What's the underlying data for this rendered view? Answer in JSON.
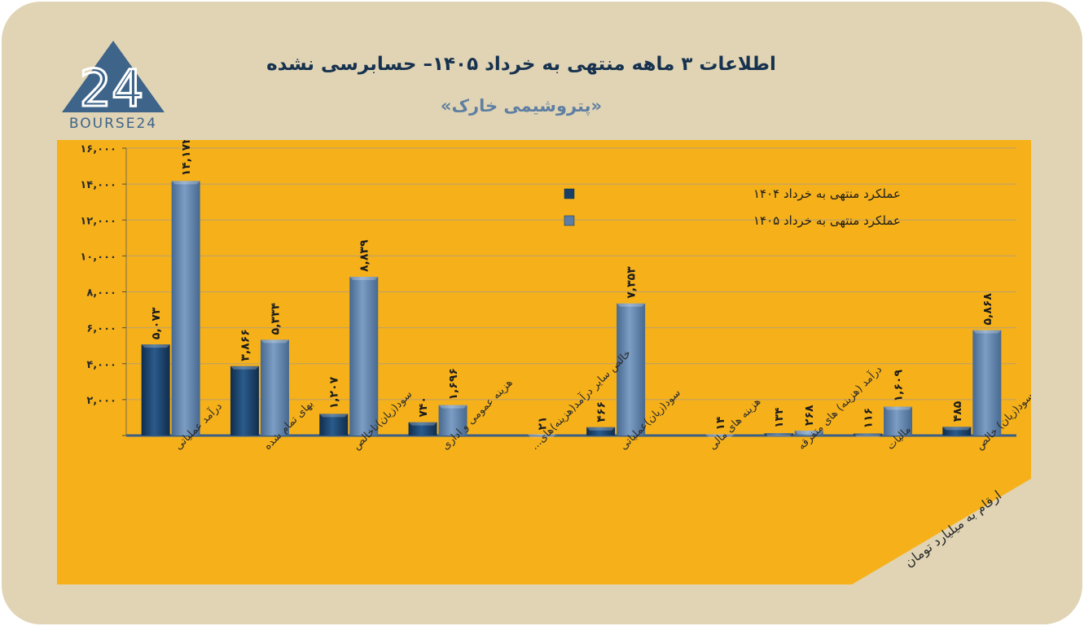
{
  "header": {
    "title": "اطلاعات ۳  ماهه منتهی به خرداد ۱۴۰۵– حسابرسی نشده",
    "subtitle": "«پتروشیمی خارک»",
    "logo_number": "24",
    "logo_text": "BOURSE24"
  },
  "unit_note": "ارقام به میلیارد تومان",
  "colors": {
    "background": "#e0d4b4",
    "panel": "#f6b11a",
    "series_1404": "#173f68",
    "series_1405": "#5b7ea8",
    "logo": "#3e6489"
  },
  "chart_data": {
    "type": "bar",
    "ylim": [
      0,
      16000
    ],
    "yticks": [
      "",
      "۲,۰۰۰",
      "۴,۰۰۰",
      "۶,۰۰۰",
      "۸,۰۰۰",
      "۱۰,۰۰۰",
      "۱۲,۰۰۰",
      "۱۴,۰۰۰",
      "۱۶,۰۰۰"
    ],
    "ytick_values": [
      0,
      2000,
      4000,
      6000,
      8000,
      10000,
      12000,
      14000,
      16000
    ],
    "grid": true,
    "legend_position": "top-right",
    "categories": [
      "درآمد عملیاتی",
      "بهای تمام شده",
      "سود(زیان)ناخالص",
      "هزینه عمومی و اداری",
      "خالص سایر درآمد(هزینه)های...",
      "سود(زیان)عملیاتی",
      "هزینه های مالی",
      "درآمد (هزینه) های متفرقه",
      "مالیات",
      "سود(زیان) خالص"
    ],
    "series": [
      {
        "name": "عملکرد منتهی به خرداد ۱۴۰۴",
        "values": [
          5073,
          3866,
          1207,
          740,
          null,
          466,
          null,
          134,
          116,
          485
        ],
        "labels": [
          "۵,۰۷۳",
          "۳,۸۶۶",
          "۱,۲۰۷",
          "۷۴۰",
          "",
          "۴۶۶",
          "",
          "۱۳۴",
          "۱۱۶",
          "۴۸۵"
        ]
      },
      {
        "name": "عملکرد منتهی به خرداد ۱۴۰۵",
        "values": [
          14172,
          5334,
          8839,
          1696,
          21,
          7353,
          14,
          268,
          1609,
          5868
        ],
        "labels": [
          "۱۴,۱۷۲",
          "۵,۳۳۴",
          "۸,۸۳۹",
          "۱,۶۹۶",
          "۲۱",
          "۷,۳۵۳",
          "۱۴",
          "۲۶۸",
          "۱,۶۰۹",
          "۵,۸۶۸"
        ]
      }
    ]
  }
}
